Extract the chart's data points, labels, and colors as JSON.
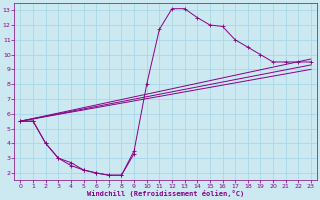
{
  "bg_color": "#cce8f0",
  "grid_color": "#a8d8e8",
  "line_color": "#880088",
  "xlabel": "Windchill (Refroidissement éolien,°C)",
  "xlim": [
    -0.5,
    23.5
  ],
  "ylim": [
    1.5,
    13.5
  ],
  "xticks": [
    0,
    1,
    2,
    3,
    4,
    5,
    6,
    7,
    8,
    9,
    10,
    11,
    12,
    13,
    14,
    15,
    16,
    17,
    18,
    19,
    20,
    21,
    22,
    23
  ],
  "yticks": [
    2,
    3,
    4,
    5,
    6,
    7,
    8,
    9,
    10,
    11,
    12,
    13
  ],
  "upper_curve_x": [
    0,
    1,
    2,
    3,
    4,
    5,
    6,
    7,
    8,
    9,
    10,
    11,
    12,
    13,
    14,
    15,
    16,
    17,
    18,
    19,
    20,
    21,
    22,
    23
  ],
  "upper_curve_y": [
    5.5,
    5.5,
    4.0,
    3.0,
    2.5,
    2.2,
    2.0,
    1.85,
    1.85,
    3.5,
    8.0,
    11.7,
    13.1,
    13.1,
    12.5,
    12.0,
    11.9,
    11.0,
    10.5,
    10.0,
    9.5,
    9.5,
    9.5,
    9.5
  ],
  "lower_curve_x": [
    0,
    1,
    2,
    3,
    4,
    5,
    6,
    7,
    8,
    9
  ],
  "lower_curve_y": [
    5.5,
    5.5,
    4.0,
    3.0,
    2.7,
    2.2,
    2.0,
    1.85,
    1.85,
    3.3
  ],
  "diag_lines": [
    {
      "x": [
        0,
        23
      ],
      "y": [
        5.5,
        9.7
      ]
    },
    {
      "x": [
        0,
        23
      ],
      "y": [
        5.5,
        9.3
      ]
    },
    {
      "x": [
        0,
        23
      ],
      "y": [
        5.5,
        9.0
      ]
    }
  ]
}
